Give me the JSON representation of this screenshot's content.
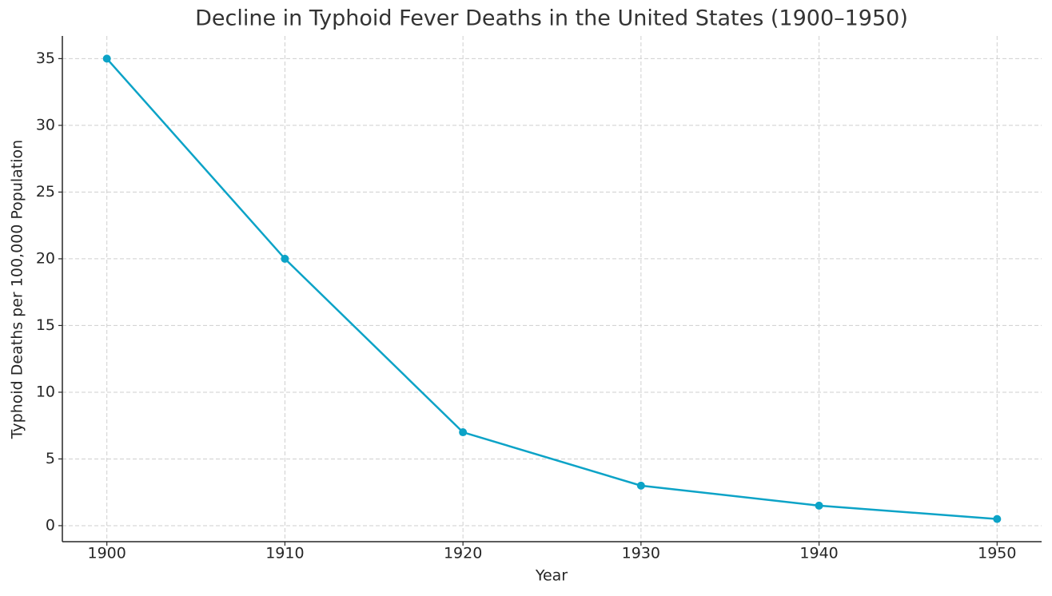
{
  "chart_data": {
    "type": "line",
    "title": "Decline in Typhoid Fever Deaths in the United States (1900–1950)",
    "x_label": "Year",
    "y_label": "Typhoid Deaths per 100,000 Population",
    "x": [
      1900,
      1910,
      1920,
      1930,
      1940,
      1950
    ],
    "series": [
      {
        "name": "Typhoid Deaths",
        "color": "#0ca3c7",
        "values": [
          35,
          20,
          7,
          3,
          1.5,
          0.5
        ]
      }
    ],
    "xlim": [
      1897.5,
      1952.5
    ],
    "xticks": [
      1900,
      1910,
      1920,
      1930,
      1940,
      1950
    ],
    "ylim": [
      -1.2,
      36.7
    ],
    "yticks": [
      0,
      5,
      10,
      15,
      20,
      25,
      30,
      35
    ],
    "grid": true
  }
}
